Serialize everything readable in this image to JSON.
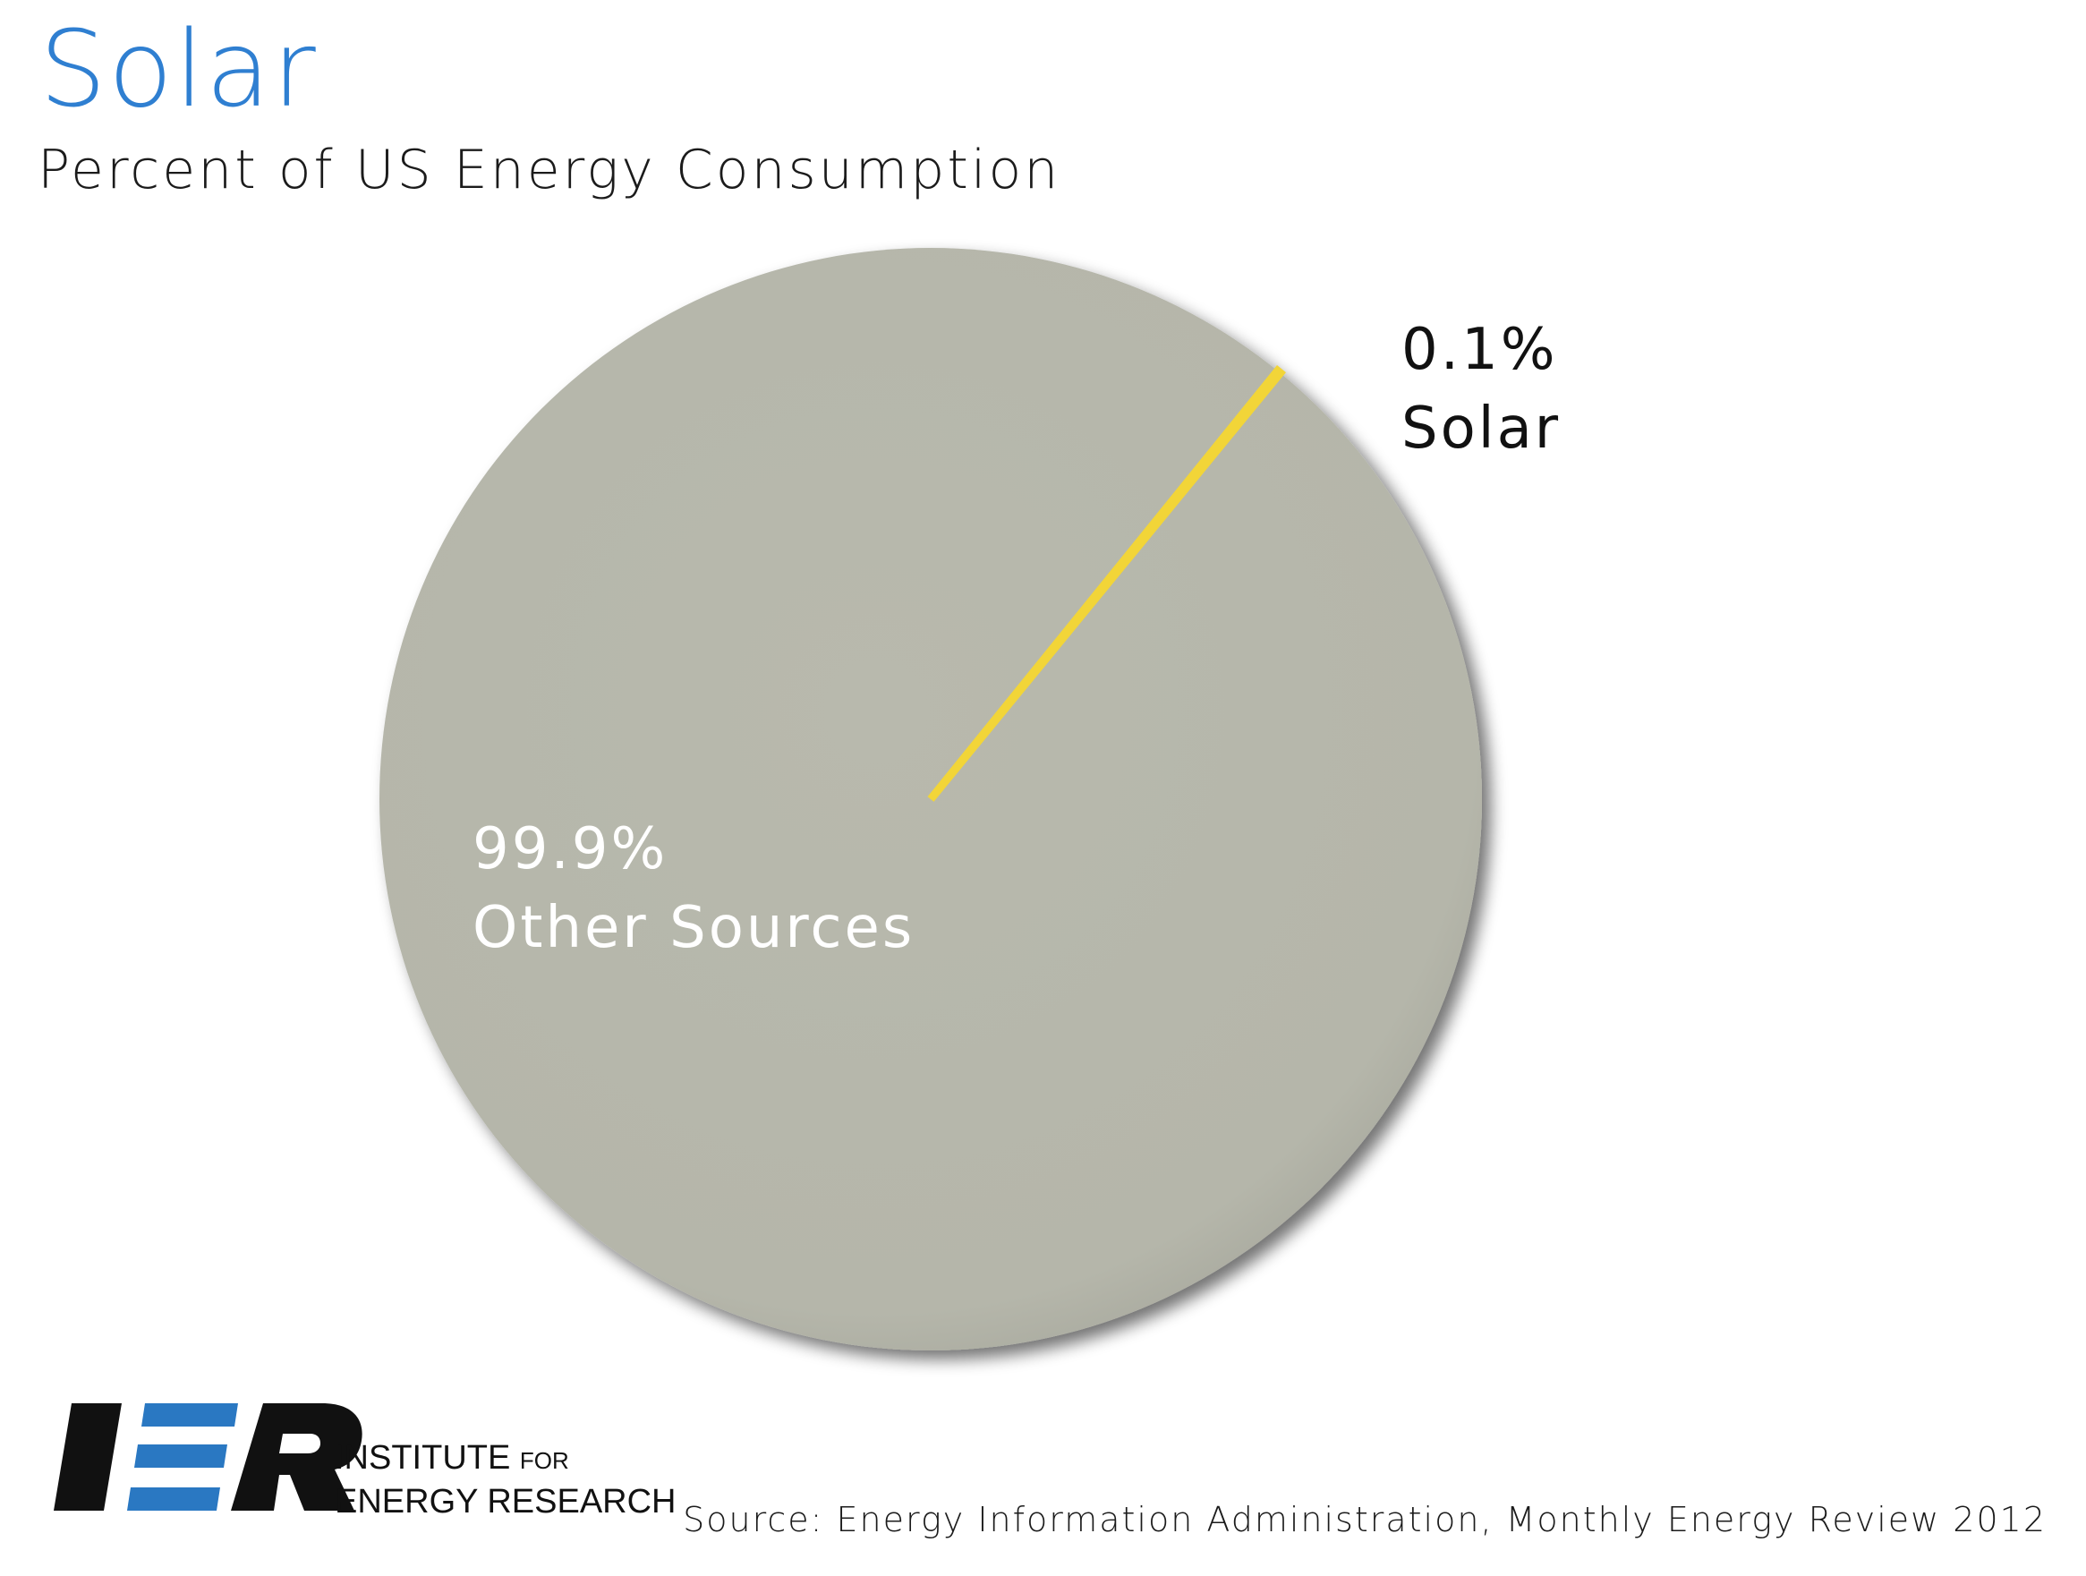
{
  "title": "Solar",
  "subtitle": "Percent of US Energy Consumption",
  "chart_data": {
    "type": "pie",
    "slices": [
      {
        "label": "Solar",
        "value": 0.1,
        "display": "0.1%",
        "color": "#f2d538"
      },
      {
        "label": "Other Sources",
        "value": 99.9,
        "display": "99.9%",
        "color": "#b6b7ab"
      }
    ]
  },
  "logo": {
    "mark": "IER",
    "line1": "INSTITUTE",
    "line1_small": "FOR",
    "line2": "ENERGY RESEARCH",
    "accent": "#2a78c2"
  },
  "source": "Source: Energy Information Administration, Monthly Energy Review 2012"
}
